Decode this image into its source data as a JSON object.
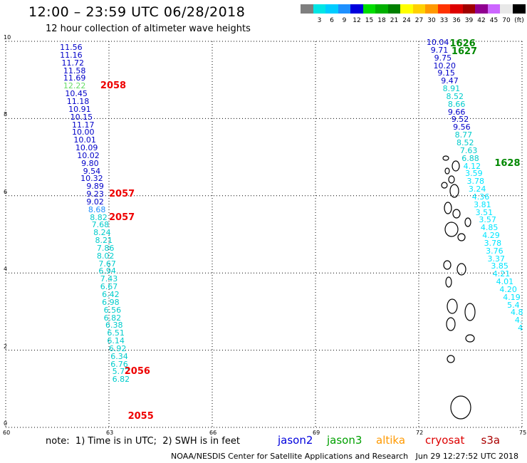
{
  "header": {
    "title": "12:00 – 23:59 UTC 06/28/2018",
    "subtitle": "12 hour collection of altimeter wave heights"
  },
  "scale": {
    "unit_label": "(ft)",
    "bins": [
      {
        "label": "",
        "color": "#7f7f7f"
      },
      {
        "label": "3",
        "color": "#00e5e5"
      },
      {
        "label": "6",
        "color": "#00ccff"
      },
      {
        "label": "9",
        "color": "#1e90ff"
      },
      {
        "label": "12",
        "color": "#0000dd"
      },
      {
        "label": "15",
        "color": "#00dd00"
      },
      {
        "label": "18",
        "color": "#00b000"
      },
      {
        "label": "21",
        "color": "#008000"
      },
      {
        "label": "24",
        "color": "#ffff00"
      },
      {
        "label": "27",
        "color": "#ffd000"
      },
      {
        "label": "30",
        "color": "#ff9900"
      },
      {
        "label": "33",
        "color": "#ff3300"
      },
      {
        "label": "36",
        "color": "#dd0000"
      },
      {
        "label": "39",
        "color": "#a00000"
      },
      {
        "label": "42",
        "color": "#900090"
      },
      {
        "label": "45",
        "color": "#cc66ff"
      },
      {
        "label": "70",
        "color": "#e8e8e8"
      },
      {
        "label": "",
        "color": "#000000"
      }
    ]
  },
  "map": {
    "lon_range": [
      60,
      75
    ],
    "lat_range": [
      0,
      10
    ],
    "x_ticks": [
      "60",
      "63",
      "66",
      "69",
      "72",
      "75"
    ],
    "y_ticks": [
      "0",
      "2",
      "4",
      "6",
      "8",
      "10"
    ],
    "colors": {
      "dark_blue": "#0000c8",
      "cyan": "#00cccc",
      "light_cyan": "#00e5ff",
      "green": "#66dd66",
      "pass_red": "#ee0000",
      "pass_green": "#008800"
    }
  },
  "tracks": [
    {
      "name": "west-track",
      "points": [
        {
          "lon": 61.9,
          "lat": 9.85,
          "swh": "11.56",
          "color": "#0000c8"
        },
        {
          "lon": 61.9,
          "lat": 9.65,
          "swh": "11.16",
          "color": "#0000c8"
        },
        {
          "lon": 61.95,
          "lat": 9.45,
          "swh": "11.72",
          "color": "#0000c8"
        },
        {
          "lon": 62.0,
          "lat": 9.25,
          "swh": "11.58",
          "color": "#0000c8"
        },
        {
          "lon": 62.0,
          "lat": 9.05,
          "swh": "11.69",
          "color": "#0000c8"
        },
        {
          "lon": 62.0,
          "lat": 8.85,
          "swh": "12.22",
          "color": "#66dd66"
        },
        {
          "lon": 62.05,
          "lat": 8.65,
          "swh": "10.45",
          "color": "#0000c8"
        },
        {
          "lon": 62.1,
          "lat": 8.45,
          "swh": "11.18",
          "color": "#0000c8"
        },
        {
          "lon": 62.15,
          "lat": 8.25,
          "swh": "10.91",
          "color": "#0000c8"
        },
        {
          "lon": 62.2,
          "lat": 8.05,
          "swh": "10.15",
          "color": "#0000c8"
        },
        {
          "lon": 62.25,
          "lat": 7.85,
          "swh": "11.17",
          "color": "#0000c8"
        },
        {
          "lon": 62.25,
          "lat": 7.65,
          "swh": "10.00",
          "color": "#0000c8"
        },
        {
          "lon": 62.3,
          "lat": 7.45,
          "swh": "10.01",
          "color": "#0000c8"
        },
        {
          "lon": 62.35,
          "lat": 7.25,
          "swh": "10.09",
          "color": "#0000c8"
        },
        {
          "lon": 62.4,
          "lat": 7.05,
          "swh": "10.02",
          "color": "#0000c8"
        },
        {
          "lon": 62.45,
          "lat": 6.85,
          "swh": "9.80",
          "color": "#0000c8"
        },
        {
          "lon": 62.5,
          "lat": 6.65,
          "swh": "9.54",
          "color": "#0000c8"
        },
        {
          "lon": 62.5,
          "lat": 6.45,
          "swh": "10.32",
          "color": "#0000c8"
        },
        {
          "lon": 62.6,
          "lat": 6.25,
          "swh": "9.89",
          "color": "#0000c8"
        },
        {
          "lon": 62.6,
          "lat": 6.05,
          "swh": "9.23",
          "color": "#0000c8"
        },
        {
          "lon": 62.6,
          "lat": 5.85,
          "swh": "9.02",
          "color": "#0000c8"
        },
        {
          "lon": 62.65,
          "lat": 5.65,
          "swh": "8.68",
          "color": "#1e90ff"
        },
        {
          "lon": 62.7,
          "lat": 5.45,
          "swh": "8.82",
          "color": "#00cccc"
        },
        {
          "lon": 62.75,
          "lat": 5.25,
          "swh": "7.68",
          "color": "#00cccc"
        },
        {
          "lon": 62.8,
          "lat": 5.05,
          "swh": "8.24",
          "color": "#00cccc"
        },
        {
          "lon": 62.85,
          "lat": 4.85,
          "swh": "8.21",
          "color": "#00cccc"
        },
        {
          "lon": 62.9,
          "lat": 4.65,
          "swh": "7.86",
          "color": "#00cccc"
        },
        {
          "lon": 62.9,
          "lat": 4.45,
          "swh": "8.02",
          "color": "#00cccc"
        },
        {
          "lon": 62.95,
          "lat": 4.25,
          "swh": "7.67",
          "color": "#00cccc"
        },
        {
          "lon": 62.95,
          "lat": 4.05,
          "swh": "6.94",
          "color": "#00cccc"
        },
        {
          "lon": 63.0,
          "lat": 3.85,
          "swh": "7.43",
          "color": "#00cccc"
        },
        {
          "lon": 63.0,
          "lat": 3.65,
          "swh": "6.67",
          "color": "#00cccc"
        },
        {
          "lon": 63.05,
          "lat": 3.45,
          "swh": "6.42",
          "color": "#00cccc"
        },
        {
          "lon": 63.05,
          "lat": 3.25,
          "swh": "6.98",
          "color": "#00cccc"
        },
        {
          "lon": 63.1,
          "lat": 3.05,
          "swh": "6.56",
          "color": "#00cccc"
        },
        {
          "lon": 63.1,
          "lat": 2.85,
          "swh": "6.82",
          "color": "#00cccc"
        },
        {
          "lon": 63.15,
          "lat": 2.65,
          "swh": "6.38",
          "color": "#00cccc"
        },
        {
          "lon": 63.2,
          "lat": 2.45,
          "swh": "6.51",
          "color": "#00cccc"
        },
        {
          "lon": 63.2,
          "lat": 2.25,
          "swh": "6.14",
          "color": "#00cccc"
        },
        {
          "lon": 63.25,
          "lat": 2.05,
          "swh": "6.92",
          "color": "#00cccc"
        },
        {
          "lon": 63.3,
          "lat": 1.85,
          "swh": "6.34",
          "color": "#00cccc"
        },
        {
          "lon": 63.3,
          "lat": 1.65,
          "swh": "6.76",
          "color": "#00cccc"
        },
        {
          "lon": 63.35,
          "lat": 1.45,
          "swh": "5.72",
          "color": "#00cccc"
        },
        {
          "lon": 63.35,
          "lat": 1.25,
          "swh": "6.82",
          "color": "#00cccc"
        }
      ]
    },
    {
      "name": "east-track",
      "points": [
        {
          "lon": 72.55,
          "lat": 9.98,
          "swh": "10.04",
          "color": "#0000c8"
        },
        {
          "lon": 72.6,
          "lat": 9.78,
          "swh": "9.71",
          "color": "#0000c8"
        },
        {
          "lon": 72.7,
          "lat": 9.58,
          "swh": "9.75",
          "color": "#0000c8"
        },
        {
          "lon": 72.75,
          "lat": 9.38,
          "swh": "10.20",
          "color": "#0000c8"
        },
        {
          "lon": 72.8,
          "lat": 9.18,
          "swh": "9.15",
          "color": "#0000c8"
        },
        {
          "lon": 72.9,
          "lat": 8.98,
          "swh": "9.47",
          "color": "#0000c8"
        },
        {
          "lon": 72.95,
          "lat": 8.78,
          "swh": "8.91",
          "color": "#00cccc"
        },
        {
          "lon": 73.05,
          "lat": 8.58,
          "swh": "8.52",
          "color": "#00cccc"
        },
        {
          "lon": 73.1,
          "lat": 8.38,
          "swh": "8.66",
          "color": "#00cccc"
        },
        {
          "lon": 73.1,
          "lat": 8.18,
          "swh": "9.66",
          "color": "#0000c8"
        },
        {
          "lon": 73.2,
          "lat": 7.98,
          "swh": "9.52",
          "color": "#0000c8"
        },
        {
          "lon": 73.25,
          "lat": 7.78,
          "swh": "9.56",
          "color": "#0000c8"
        },
        {
          "lon": 73.3,
          "lat": 7.58,
          "swh": "8.77",
          "color": "#00cccc"
        },
        {
          "lon": 73.35,
          "lat": 7.38,
          "swh": "8.52",
          "color": "#00cccc"
        },
        {
          "lon": 73.45,
          "lat": 7.18,
          "swh": "7.63",
          "color": "#00cccc"
        },
        {
          "lon": 73.5,
          "lat": 6.98,
          "swh": "6.88",
          "color": "#00cccc"
        },
        {
          "lon": 73.55,
          "lat": 6.78,
          "swh": "4.12",
          "color": "#00e5ff"
        },
        {
          "lon": 73.6,
          "lat": 6.58,
          "swh": "3.59",
          "color": "#00e5ff"
        },
        {
          "lon": 73.65,
          "lat": 6.38,
          "swh": "3.78",
          "color": "#00e5ff"
        },
        {
          "lon": 73.7,
          "lat": 6.18,
          "swh": "3.24",
          "color": "#00e5ff"
        },
        {
          "lon": 73.8,
          "lat": 5.98,
          "swh": "4.36",
          "color": "#00e5ff"
        },
        {
          "lon": 73.85,
          "lat": 5.78,
          "swh": "3.81",
          "color": "#00e5ff"
        },
        {
          "lon": 73.9,
          "lat": 5.58,
          "swh": "3.51",
          "color": "#00e5ff"
        },
        {
          "lon": 74.0,
          "lat": 5.38,
          "swh": "3.57",
          "color": "#00e5ff"
        },
        {
          "lon": 74.05,
          "lat": 5.18,
          "swh": "4.85",
          "color": "#00e5ff"
        },
        {
          "lon": 74.1,
          "lat": 4.98,
          "swh": "4.29",
          "color": "#00e5ff"
        },
        {
          "lon": 74.15,
          "lat": 4.78,
          "swh": "3.78",
          "color": "#00e5ff"
        },
        {
          "lon": 74.2,
          "lat": 4.58,
          "swh": "3.76",
          "color": "#00e5ff"
        },
        {
          "lon": 74.25,
          "lat": 4.38,
          "swh": "3.37",
          "color": "#00e5ff"
        },
        {
          "lon": 74.35,
          "lat": 4.18,
          "swh": "3.85",
          "color": "#00e5ff"
        },
        {
          "lon": 74.4,
          "lat": 3.98,
          "swh": "4.21",
          "color": "#00e5ff"
        },
        {
          "lon": 74.5,
          "lat": 3.78,
          "swh": "4.01",
          "color": "#00e5ff"
        },
        {
          "lon": 74.6,
          "lat": 3.58,
          "swh": "4.20",
          "color": "#00e5ff"
        },
        {
          "lon": 74.7,
          "lat": 3.38,
          "swh": "4.19",
          "color": "#00e5ff"
        },
        {
          "lon": 74.75,
          "lat": 3.18,
          "swh": "5.4",
          "color": "#00e5ff"
        },
        {
          "lon": 74.85,
          "lat": 2.98,
          "swh": "4.8",
          "color": "#00e5ff"
        },
        {
          "lon": 74.9,
          "lat": 2.78,
          "swh": "4.",
          "color": "#00e5ff"
        },
        {
          "lon": 74.95,
          "lat": 2.58,
          "swh": "4",
          "color": "#00e5ff"
        }
      ]
    }
  ],
  "pass_labels": [
    {
      "text": "2058",
      "lon": 62.75,
      "lat": 8.85,
      "color": "#ee0000"
    },
    {
      "text": "2057",
      "lon": 63.0,
      "lat": 6.05,
      "color": "#ee0000"
    },
    {
      "text": "2057",
      "lon": 63.0,
      "lat": 5.45,
      "color": "#ee0000"
    },
    {
      "text": "2056",
      "lon": 63.45,
      "lat": 1.45,
      "color": "#ee0000"
    },
    {
      "text": "2055",
      "lon": 63.55,
      "lat": 0.3,
      "color": "#ee0000"
    },
    {
      "text": "1626",
      "lon": 72.9,
      "lat": 9.95,
      "color": "#008800"
    },
    {
      "text": "1627",
      "lon": 72.95,
      "lat": 9.75,
      "color": "#008800"
    },
    {
      "text": "1628",
      "lon": 74.2,
      "lat": 6.85,
      "color": "#008800"
    }
  ],
  "footer": {
    "note": "note:  1) Time is in UTC;  2) SWH is in feet",
    "satellites": [
      {
        "name": "jason2",
        "color": "#0000dd"
      },
      {
        "name": "jason3",
        "color": "#00a000"
      },
      {
        "name": "altika",
        "color": "#ff9900"
      },
      {
        "name": "cryosat",
        "color": "#dd0000"
      },
      {
        "name": "s3a",
        "color": "#aa0000"
      }
    ],
    "credit": "NOAA/NESDIS Center for Satellite Applications and Research",
    "generated": "Jun 29 12:27:52 UTC 2018"
  }
}
